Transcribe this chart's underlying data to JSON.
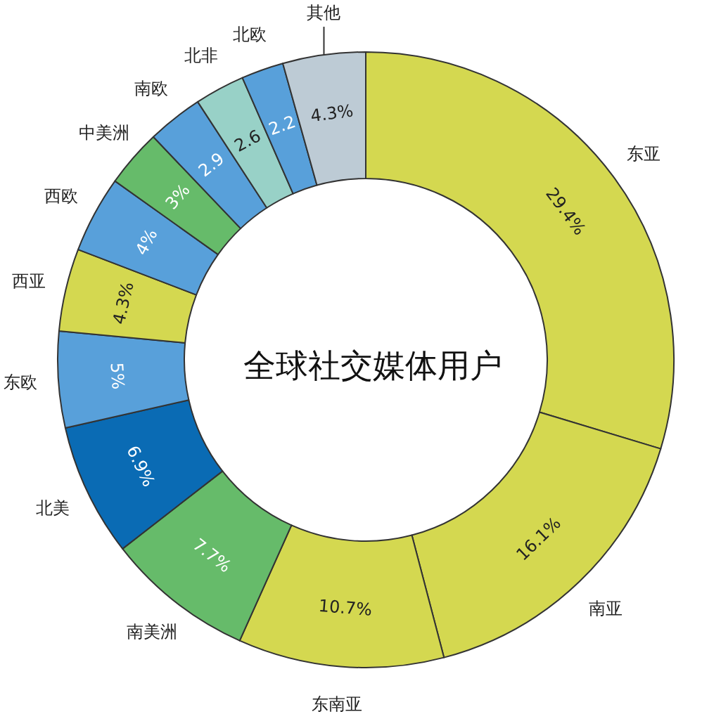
{
  "chart_data": {
    "type": "donut",
    "title": "全球社交媒体用户",
    "categories": [
      "东亚",
      "南亚",
      "东南亚",
      "南美洲",
      "北美",
      "东欧",
      "西亚",
      "西欧",
      "中美洲",
      "南欧",
      "北非",
      "北欧",
      "其他"
    ],
    "values": [
      29.4,
      16.1,
      10.7,
      7.7,
      6.9,
      5,
      4.3,
      4,
      3,
      2.9,
      2.6,
      2.2,
      4.3
    ],
    "value_labels": [
      "29.4%",
      "16.1%",
      "10.7%",
      "7.7%",
      "6.9%",
      "5%",
      "4.3%",
      "4%",
      "3%",
      "2.9",
      "2.6",
      "2.2",
      "4.3%"
    ],
    "colors": [
      "#d4d850",
      "#d4d850",
      "#d4d850",
      "#66bb6a",
      "#0a6bb4",
      "#58a0da",
      "#d4d850",
      "#58a0da",
      "#66bb6a",
      "#58a0da",
      "#98d1c7",
      "#58a0da",
      "#bdcbd5"
    ]
  }
}
